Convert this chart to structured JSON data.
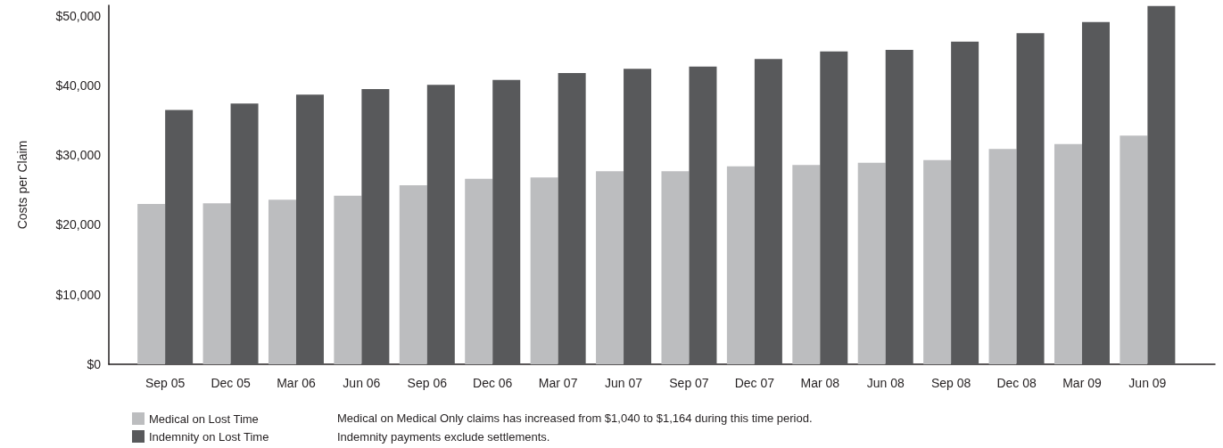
{
  "chart_data": {
    "type": "bar",
    "ylabel": "Costs per Claim",
    "categories": [
      "Sep 05",
      "Dec 05",
      "Mar 06",
      "Jun 06",
      "Sep 06",
      "Dec 06",
      "Mar 07",
      "Jun 07",
      "Sep 07",
      "Dec 07",
      "Mar 08",
      "Jun 08",
      "Sep 08",
      "Dec 08",
      "Mar 09",
      "Jun 09"
    ],
    "series": [
      {
        "name": "Medical on Lost Time",
        "color": "#bcbdbf",
        "values": [
          23000,
          23100,
          23600,
          24200,
          25700,
          26600,
          26800,
          27700,
          27700,
          28400,
          28600,
          28900,
          29300,
          30900,
          31600,
          32800
        ]
      },
      {
        "name": "Indemnity on Lost Time",
        "color": "#58595b",
        "values": [
          36500,
          37400,
          38700,
          39500,
          40100,
          40800,
          41800,
          42400,
          42700,
          43800,
          44900,
          45100,
          46300,
          47500,
          49100,
          51400
        ]
      }
    ],
    "ylim": [
      0,
      51500
    ],
    "yticks": [
      {
        "value": 0,
        "label": "$0"
      },
      {
        "value": 10000,
        "label": "$10,000"
      },
      {
        "value": 20000,
        "label": "$20,000"
      },
      {
        "value": 30000,
        "label": "$30,000"
      },
      {
        "value": 40000,
        "label": "$40,000"
      },
      {
        "value": 50000,
        "label": "$50,000"
      }
    ],
    "grid": false,
    "legend": "bottom left",
    "annotations": [
      "Medical on Medical Only claims has increased from $1,040 to $1,164 during this time period.",
      "Indemnity payments exclude settlements."
    ]
  }
}
